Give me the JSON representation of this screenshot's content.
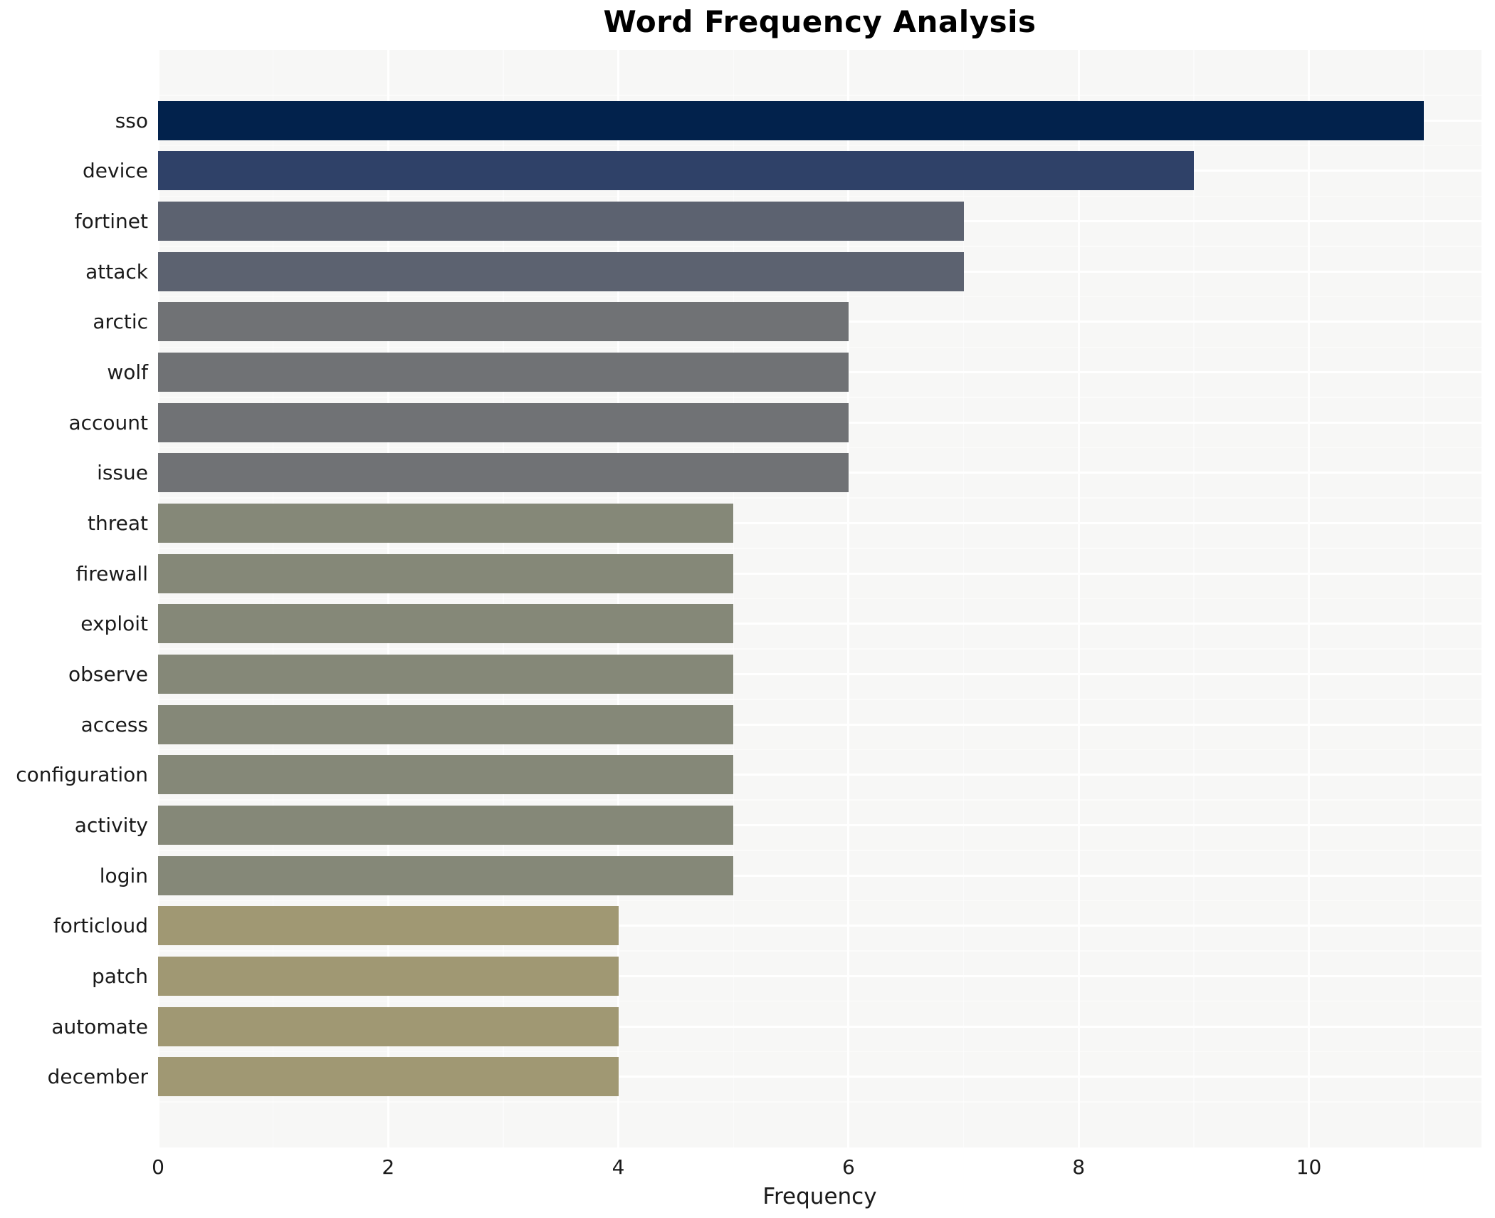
{
  "chart_data": {
    "type": "bar",
    "orientation": "horizontal",
    "title": "Word Frequency Analysis",
    "xlabel": "Frequency",
    "ylabel": "",
    "categories": [
      "sso",
      "device",
      "fortinet",
      "attack",
      "arctic",
      "wolf",
      "account",
      "issue",
      "threat",
      "firewall",
      "exploit",
      "observe",
      "access",
      "configuration",
      "activity",
      "login",
      "forticloud",
      "patch",
      "automate",
      "december"
    ],
    "values": [
      11,
      9,
      7,
      7,
      6,
      6,
      6,
      6,
      5,
      5,
      5,
      5,
      5,
      5,
      5,
      5,
      4,
      4,
      4,
      4
    ],
    "bar_colors": [
      "#02224c",
      "#2f4168",
      "#5c6270",
      "#5c6270",
      "#707275",
      "#707275",
      "#707275",
      "#707275",
      "#858878",
      "#858878",
      "#858878",
      "#858878",
      "#858878",
      "#858878",
      "#858878",
      "#858878",
      "#a09873",
      "#a09873",
      "#a09873",
      "#a09873"
    ],
    "xlim": [
      0,
      11.5
    ],
    "xticks": [
      0,
      2,
      4,
      6,
      8,
      10
    ],
    "xtick_labels": [
      "0",
      "2",
      "4",
      "6",
      "8",
      "10"
    ],
    "grid": true,
    "legend": false,
    "panel_bg": "#f7f7f6",
    "grid_color": "#ffffff",
    "text_color": "#1a1a1a",
    "title_color": "#000000"
  }
}
